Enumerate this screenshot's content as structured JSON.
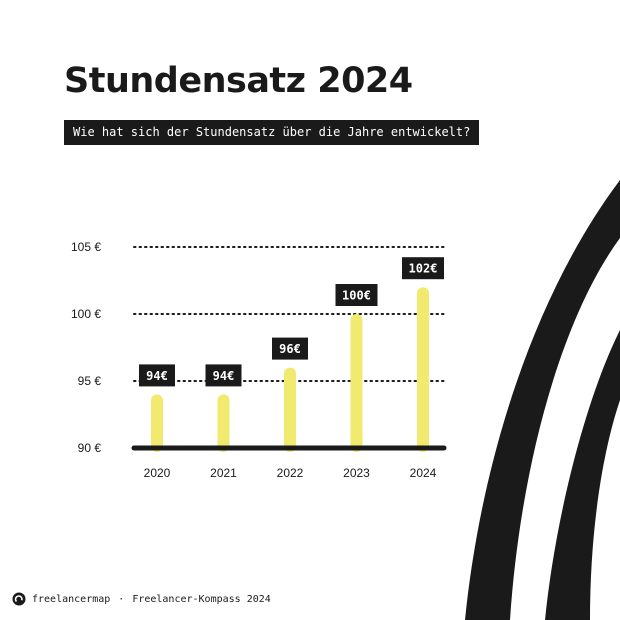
{
  "title": "Stundensatz 2024",
  "subtitle": "Wie hat sich der Stundensatz über die Jahre entwickelt?",
  "footer": {
    "brand": "freelancermap",
    "separator": "·",
    "source": "Freelancer-Kompass 2024",
    "logo_icon": "freelancermap-logo-icon"
  },
  "colors": {
    "bar": "#f1ea6e",
    "label_bg": "#1a1a1a",
    "label_text": "#ffffff",
    "baseline": "#1a1a1a",
    "accent_stripes": "#1a1a1a"
  },
  "chart_data": {
    "type": "bar",
    "categories": [
      "2020",
      "2021",
      "2022",
      "2023",
      "2024"
    ],
    "values": [
      94,
      94,
      96,
      100,
      102
    ],
    "value_labels": [
      "94€",
      "94€",
      "96€",
      "100€",
      "102€"
    ],
    "title": "Stundensatz 2024",
    "subtitle": "Wie hat sich der Stundensatz über die Jahre entwickelt?",
    "xlabel": "",
    "ylabel": "",
    "ylim": [
      90,
      105
    ],
    "yticks": [
      90,
      95,
      100,
      105
    ],
    "ytick_labels": [
      "90 €",
      "95 €",
      "100 €",
      "105 €"
    ],
    "grid": "dotted horizontal",
    "legend": "none"
  }
}
